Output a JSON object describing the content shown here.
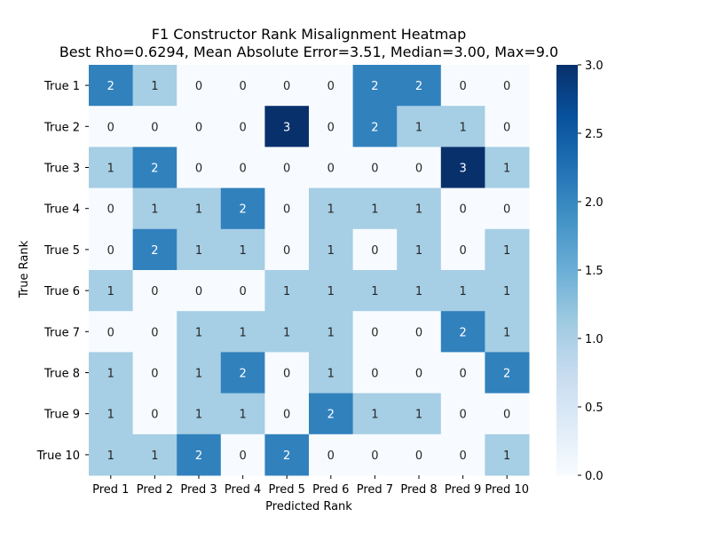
{
  "chart_data": {
    "type": "heatmap",
    "title": "F1 Constructor Rank Misalignment Heatmap",
    "subtitle": "Best Rho=0.6294, Mean Absolute Error=3.51, Median=3.00, Max=9.0",
    "xlabel": "Predicted Rank",
    "ylabel": "True Rank",
    "x_categories": [
      "Pred 1",
      "Pred 2",
      "Pred 3",
      "Pred 4",
      "Pred 5",
      "Pred 6",
      "Pred 7",
      "Pred 8",
      "Pred 9",
      "Pred 10"
    ],
    "y_categories": [
      "True 1",
      "True 2",
      "True 3",
      "True 4",
      "True 5",
      "True 6",
      "True 7",
      "True 8",
      "True 9",
      "True 10"
    ],
    "values": [
      [
        2,
        1,
        0,
        0,
        0,
        0,
        2,
        2,
        0,
        0
      ],
      [
        0,
        0,
        0,
        0,
        3,
        0,
        2,
        1,
        1,
        0
      ],
      [
        1,
        2,
        0,
        0,
        0,
        0,
        0,
        0,
        3,
        1
      ],
      [
        0,
        1,
        1,
        2,
        0,
        1,
        1,
        1,
        0,
        0
      ],
      [
        0,
        2,
        1,
        1,
        0,
        1,
        0,
        1,
        0,
        1
      ],
      [
        1,
        0,
        0,
        0,
        1,
        1,
        1,
        1,
        1,
        1
      ],
      [
        0,
        0,
        1,
        1,
        1,
        1,
        0,
        0,
        2,
        1
      ],
      [
        1,
        0,
        1,
        2,
        0,
        1,
        0,
        0,
        0,
        2
      ],
      [
        1,
        0,
        1,
        1,
        0,
        2,
        1,
        1,
        0,
        0
      ],
      [
        1,
        1,
        2,
        0,
        2,
        0,
        0,
        0,
        0,
        1
      ]
    ],
    "colorbar": {
      "range": [
        0,
        3
      ],
      "ticks": [
        "0.0",
        "0.5",
        "1.0",
        "1.5",
        "2.0",
        "2.5",
        "3.0"
      ],
      "colormap": "Blues",
      "colors": {
        "0": "#f7fbff",
        "1": "#a6cee4",
        "2": "#3181bd",
        "3": "#08306b"
      }
    }
  }
}
